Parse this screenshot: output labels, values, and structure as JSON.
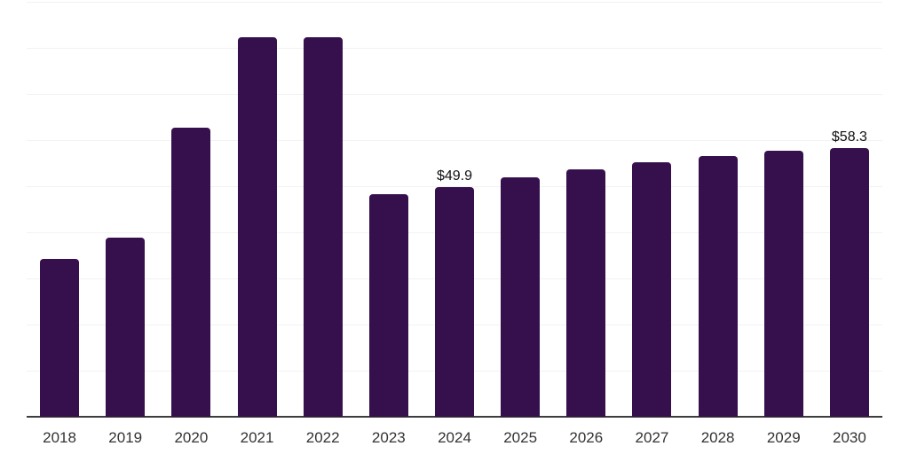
{
  "chart_data": {
    "type": "bar",
    "title": "",
    "xlabel": "",
    "ylabel": "",
    "categories": [
      "2018",
      "2019",
      "2020",
      "2021",
      "2022",
      "2023",
      "2024",
      "2025",
      "2026",
      "2027",
      "2028",
      "2029",
      "2030"
    ],
    "values": [
      34.2,
      38.8,
      62.6,
      82.4,
      82.4,
      48.3,
      49.9,
      52.0,
      53.7,
      55.2,
      56.6,
      57.6,
      58.3
    ],
    "data_labels": {
      "2024": "$49.9",
      "2030": "$58.3"
    },
    "ylim": [
      0,
      90
    ],
    "gridline_step": 10,
    "grid": true,
    "legend": false,
    "y_axis_labels_visible": false,
    "colors": {
      "bar": "#36104D",
      "gridline": "#F2F2F2",
      "axis_line": "#3D3D3D",
      "tick_label": "#333333",
      "data_label": "#111111",
      "background": "#FFFFFF"
    }
  }
}
